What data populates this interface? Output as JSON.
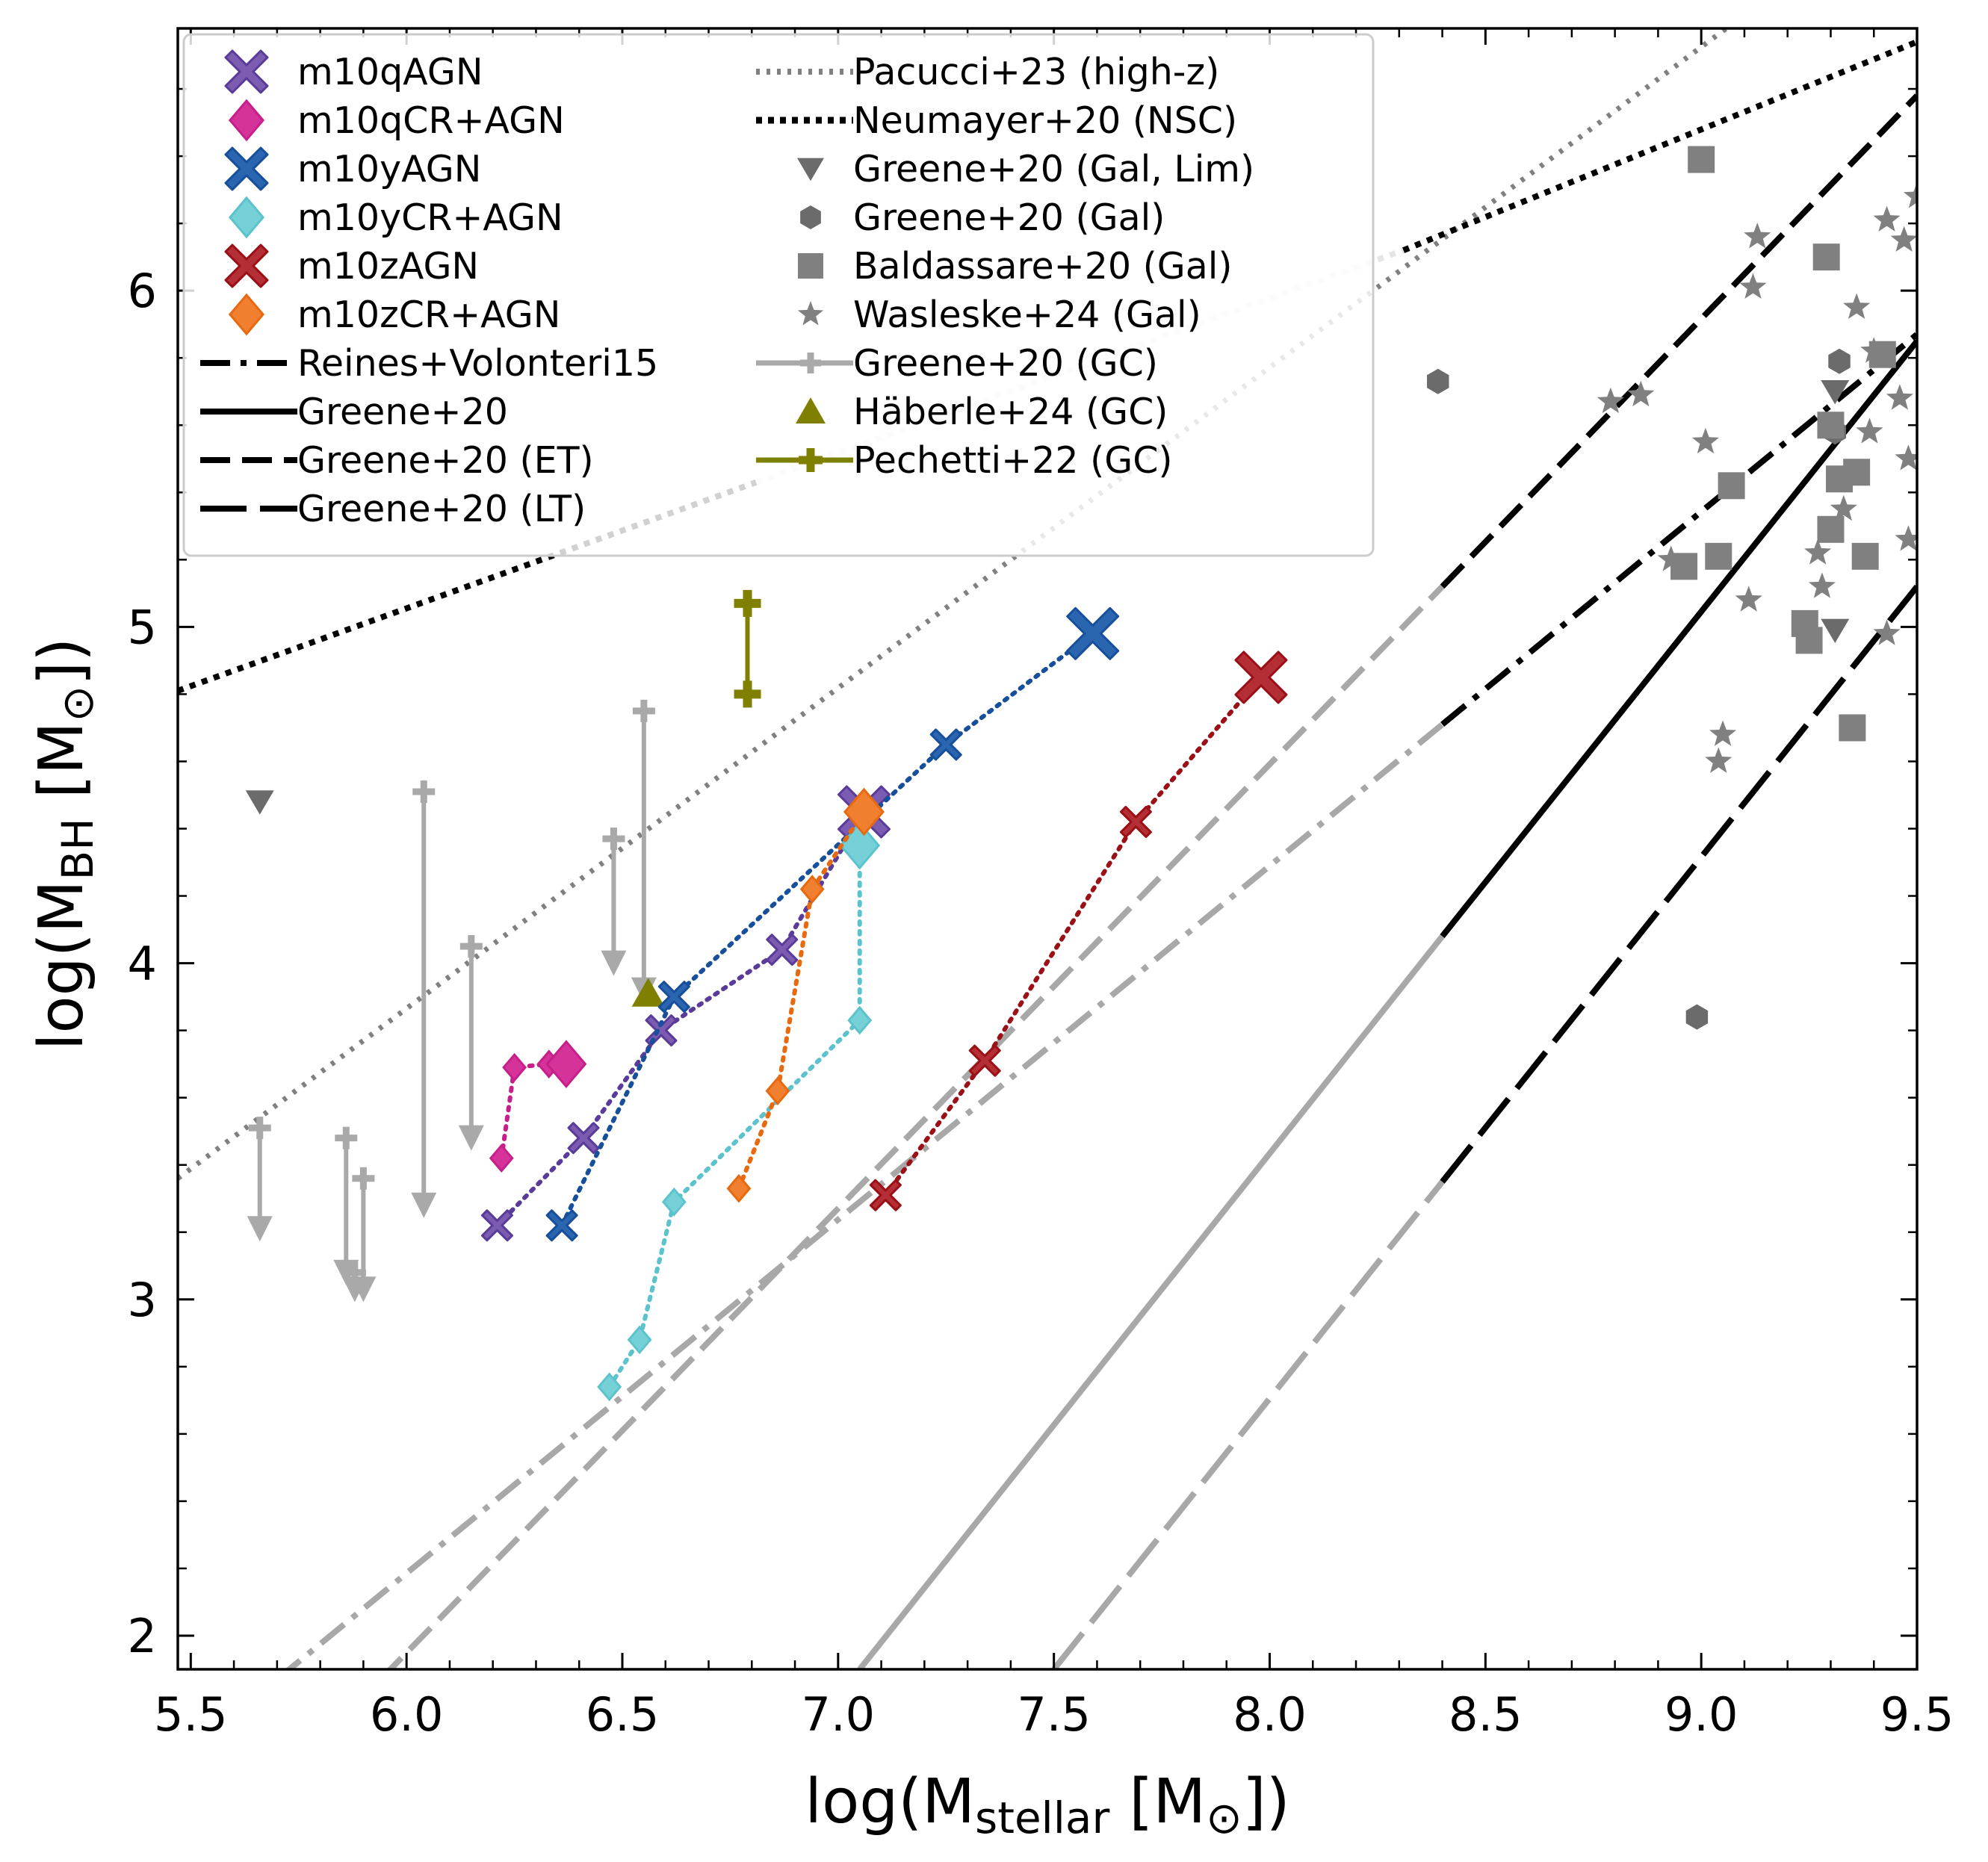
{
  "chart_data": {
    "type": "scatter",
    "xlabel": "log(M_stellar [M_⊙])",
    "ylabel": "log(M_BH [M_⊙])",
    "xlabel_parts": {
      "pre": "log(M",
      "sub": "stellar",
      "post": " [M",
      "sun": "⊙",
      "end": "])"
    },
    "ylabel_parts": {
      "pre": "log(M",
      "sub": "BH",
      "post": " [M",
      "sun": "⊙",
      "end": "])"
    },
    "xlim": [
      5.47,
      9.5
    ],
    "ylim": [
      1.9,
      6.78
    ],
    "x_ticks": [
      "5.5",
      "6.0",
      "6.5",
      "7.0",
      "7.5",
      "8.0",
      "8.5",
      "9.0",
      "9.5"
    ],
    "y_ticks": [
      "2",
      "3",
      "4",
      "5",
      "6"
    ],
    "grid": false,
    "legend_position": "top-left",
    "legend": [
      {
        "label": "m10qAGN"
      },
      {
        "label": "m10qCR+AGN"
      },
      {
        "label": "m10yAGN"
      },
      {
        "label": "m10yCR+AGN"
      },
      {
        "label": "m10zAGN"
      },
      {
        "label": "m10zCR+AGN"
      },
      {
        "label": "Reines+Volonteri15"
      },
      {
        "label": "Greene+20"
      },
      {
        "label": "Greene+20 (ET)"
      },
      {
        "label": "Greene+20 (LT)"
      },
      {
        "label": "Pacucci+23 (high-z)"
      },
      {
        "label": "Neumayer+20 (NSC)"
      },
      {
        "label": "Greene+20 (Gal, Lim)"
      },
      {
        "label": "Greene+20 (Gal)"
      },
      {
        "label": "Baldassare+20 (Gal)"
      },
      {
        "label": "Wasleske+24 (Gal)"
      },
      {
        "label": "Greene+20 (GC)"
      },
      {
        "label": "Häberle+24 (GC)"
      },
      {
        "label": "Pechetti+22 (GC)"
      }
    ],
    "simulation_series": [
      {
        "name": "m10qAGN",
        "marker": "x",
        "color": "#7b5cb0",
        "line": "#5a3b9a",
        "x": [
          6.21,
          6.41,
          6.59,
          6.87,
          7.06
        ],
        "y": [
          3.22,
          3.48,
          3.8,
          4.04,
          4.45
        ]
      },
      {
        "name": "m10qCR+AGN",
        "marker": "diamond",
        "color": "#d6339a",
        "line": "#c71f8a",
        "x": [
          6.22,
          6.25,
          6.33,
          6.37
        ],
        "y": [
          3.42,
          3.69,
          3.7,
          3.7
        ]
      },
      {
        "name": "m10yAGN",
        "marker": "x",
        "color": "#2a66b0",
        "line": "#174f9a",
        "x": [
          6.36,
          6.62,
          7.25,
          7.59
        ],
        "y": [
          3.22,
          3.9,
          4.65,
          4.98
        ]
      },
      {
        "name": "m10yCR+AGN",
        "marker": "diamond",
        "color": "#76d0d8",
        "line": "#5cc3cc",
        "x": [
          6.47,
          6.54,
          6.62,
          7.05,
          7.05
        ],
        "y": [
          2.74,
          2.88,
          3.29,
          3.83,
          4.35
        ]
      },
      {
        "name": "m10zAGN",
        "marker": "x",
        "color": "#b42f35",
        "line": "#9a1016",
        "x": [
          7.11,
          7.34,
          7.69,
          7.98
        ],
        "y": [
          3.31,
          3.71,
          4.42,
          4.85
        ]
      },
      {
        "name": "m10zCR+AGN",
        "marker": "diamond",
        "color": "#f08030",
        "line": "#e86a10",
        "x": [
          6.77,
          6.86,
          6.94,
          7.06
        ],
        "y": [
          3.33,
          3.62,
          4.22,
          4.45
        ]
      }
    ],
    "relations": [
      {
        "name": "Reines+Volonteri15",
        "x_gray": [
          5.7,
          8.4
        ],
        "y_gray": [
          1.87,
          4.71
        ],
        "x_black": [
          8.4,
          9.5
        ],
        "y_black": [
          4.71,
          5.87
        ]
      },
      {
        "name": "Greene+20",
        "x_gray": [
          7.05,
          8.4
        ],
        "y_gray": [
          1.9,
          4.08
        ],
        "x_black": [
          8.4,
          9.5
        ],
        "y_black": [
          4.08,
          5.85
        ]
      },
      {
        "name": "Greene+20 (ET)",
        "x_gray": [
          5.94,
          8.4
        ],
        "y_gray": [
          1.87,
          5.12
        ],
        "x_black": [
          8.4,
          9.5
        ],
        "y_black": [
          5.12,
          6.58
        ]
      },
      {
        "name": "Greene+20 (LT)",
        "x_gray": [
          7.5,
          8.4
        ],
        "y_gray": [
          1.9,
          3.35
        ],
        "x_black": [
          8.4,
          9.5
        ],
        "y_black": [
          3.35,
          5.12
        ]
      },
      {
        "name": "Pacucci+23 (high-z)",
        "x": [
          5.47,
          9.1
        ],
        "y": [
          3.36,
          6.82
        ]
      },
      {
        "name": "Neumayer+20 (NSC)",
        "x_black_1": [
          5.47,
          6.81
        ],
        "y_black_1": [
          4.81,
          5.43
        ],
        "x_gray": [
          6.81,
          8.31
        ],
        "y_gray": [
          5.43,
          6.12
        ],
        "x_black_2": [
          8.31,
          9.5
        ],
        "y_black_2": [
          6.12,
          6.74
        ]
      }
    ],
    "greene20_gal_lim": {
      "x": [
        5.66,
        9.31,
        9.31
      ],
      "y": [
        4.48,
        5.7,
        4.99
      ]
    },
    "greene20_gal": {
      "x": [
        8.39,
        8.99,
        9.31,
        9.32
      ],
      "y": [
        5.73,
        3.84,
        5.58,
        5.79
      ]
    },
    "baldassare20_gal": {
      "x": [
        9.0,
        8.96,
        9.04,
        9.07,
        9.24,
        9.25,
        9.29,
        9.3,
        9.32,
        9.36,
        9.38,
        9.35,
        9.3,
        9.42
      ],
      "y": [
        6.39,
        5.18,
        5.21,
        5.42,
        5.01,
        4.96,
        6.1,
        5.29,
        5.44,
        5.46,
        5.21,
        4.7,
        5.6,
        5.81
      ]
    },
    "wasleske24_gal": {
      "x": [
        8.79,
        8.86,
        8.93,
        9.01,
        9.05,
        9.11,
        9.12,
        9.13,
        9.04,
        9.25,
        9.27,
        9.28,
        9.36,
        9.33,
        9.39,
        9.4,
        9.43,
        9.47,
        9.48,
        9.5,
        9.46,
        9.43,
        9.48
      ],
      "y": [
        5.67,
        5.69,
        5.2,
        5.55,
        4.68,
        5.08,
        6.01,
        6.16,
        4.6,
        4.96,
        5.22,
        5.12,
        5.95,
        5.35,
        5.58,
        5.82,
        6.21,
        6.15,
        5.26,
        6.28,
        5.68,
        4.98,
        5.5
      ]
    },
    "greene20_gc": [
      {
        "x": 5.66,
        "y_top": 3.51,
        "y_bottom": 3.19
      },
      {
        "x": 5.86,
        "y_top": 3.48,
        "y_bottom": 3.06
      },
      {
        "x": 5.88,
        "y_top": 3.08,
        "y_bottom": 3.01
      },
      {
        "x": 5.9,
        "y_top": 3.36,
        "y_bottom": 3.01
      },
      {
        "x": 6.04,
        "y_top": 4.51,
        "y_bottom": 3.26
      },
      {
        "x": 6.15,
        "y_top": 4.05,
        "y_bottom": 3.46
      },
      {
        "x": 6.48,
        "y_top": 4.37,
        "y_bottom": 3.98
      },
      {
        "x": 6.55,
        "y_top": 4.75,
        "y_bottom": 3.9
      }
    ],
    "haberle24_gc": {
      "x": [
        6.56
      ],
      "y": [
        3.91
      ]
    },
    "pechetti22_gc": {
      "x": [
        6.79,
        6.79
      ],
      "y": [
        4.8,
        5.07
      ]
    }
  }
}
